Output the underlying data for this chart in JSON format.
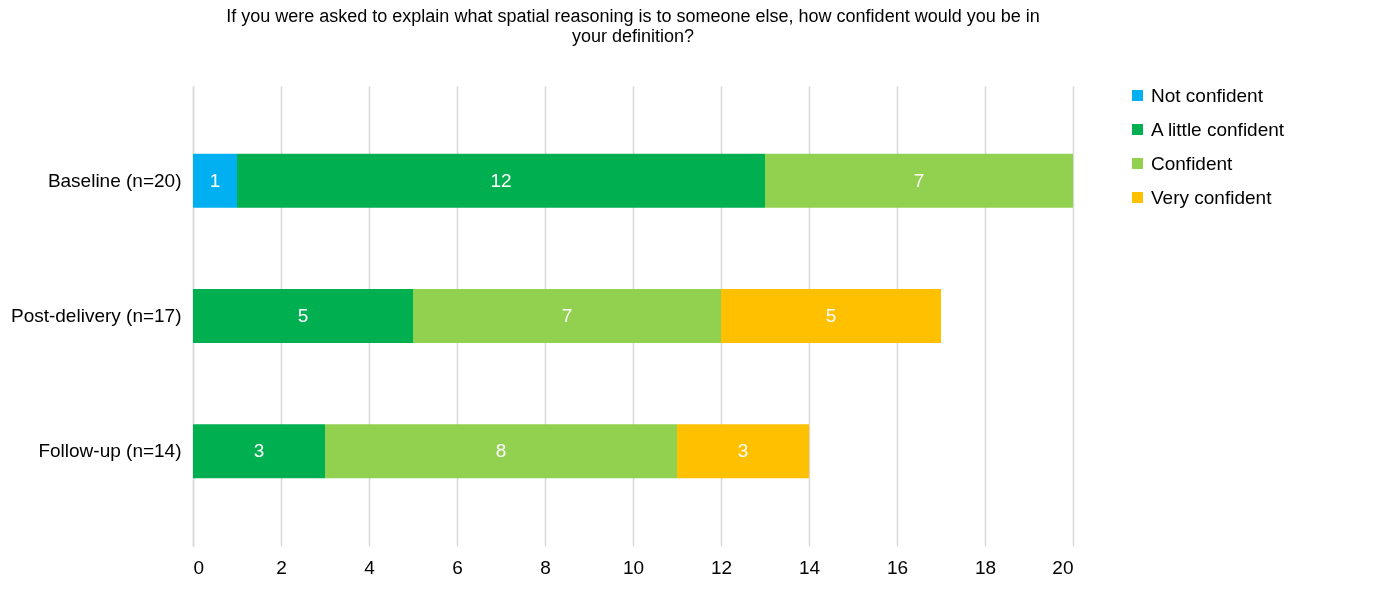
{
  "chart_data": {
    "type": "bar",
    "orientation": "horizontal",
    "stacked": true,
    "title": "If you were asked to explain what spatial reasoning is to someone else, how confident would you be in your definition?",
    "categories": [
      "Baseline (n=20)",
      "Post-delivery (n=17)",
      "Follow-up (n=14)"
    ],
    "series": [
      {
        "name": "Not confident",
        "color": "#00b0f0",
        "values": [
          1,
          null,
          null
        ]
      },
      {
        "name": "A little confident",
        "color": "#00b050",
        "values": [
          12,
          5,
          3
        ]
      },
      {
        "name": "Confident",
        "color": "#92d050",
        "values": [
          7,
          7,
          8
        ]
      },
      {
        "name": "Very confident",
        "color": "#ffc000",
        "values": [
          null,
          5,
          3
        ]
      }
    ],
    "xlim": [
      0,
      20
    ],
    "xticks": [
      0,
      2,
      4,
      6,
      8,
      10,
      12,
      14,
      16,
      18,
      20
    ],
    "grid": "x",
    "legend": "right",
    "data_labels": true
  }
}
